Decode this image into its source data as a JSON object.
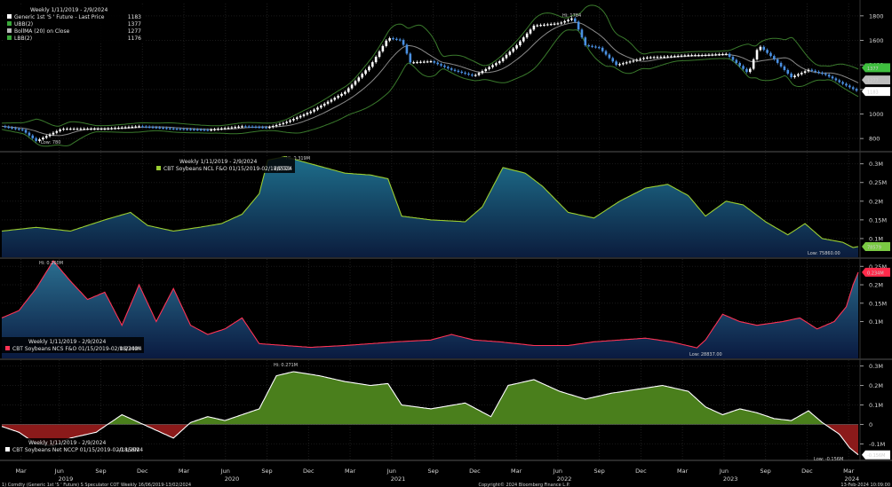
{
  "colors": {
    "background": "#000000",
    "price_up": "#ffffff",
    "price_down": "#4a90e2",
    "bollinger": "#8a8a8a",
    "band": "#3a7a2c",
    "panel2_line": "#9acd32",
    "panel3_line": "#ff3355",
    "panel4_line": "#ffffff",
    "panel4_pos": "#4a7f1c",
    "panel4_neg": "#8b1a1a"
  },
  "footer": {
    "left": "1) Comdty (Generic 1st 'S ' Future) S Speculator COT  Weekly 16/06/2019-13/02/2024",
    "center": "Copyright© 2024 Bloomberg Finance L.P.",
    "right": "13-Feb-2024 10:09:00"
  },
  "chart_data": [
    {
      "type": "candlestick",
      "legend_title": "Weekly 1/11/2019 - 2/9/2024",
      "legend": [
        {
          "name": "Generic 1st 'S ' Future - Last Price",
          "value": "1183"
        },
        {
          "name": "UBB(2)",
          "value": "1377"
        },
        {
          "name": "BollMA (20)  on Close",
          "value": "1277"
        },
        {
          "name": "LBB(2)",
          "value": "1176"
        }
      ],
      "ylim": [
        700,
        1900
      ],
      "yticks": [
        "800",
        "1000",
        "1200",
        "1400",
        "1600",
        "1800"
      ],
      "tags": [
        {
          "label": "1377",
          "value": 1377,
          "color": "#3fbf3f"
        },
        {
          "label": "1277",
          "value": 1277,
          "color": "#bdbdbd"
        },
        {
          "label": "1183",
          "value": 1183,
          "color": "#ffffff"
        }
      ],
      "annotations": {
        "high": "Hi: 1784",
        "low": "Low: 780"
      },
      "keypoints": [
        [
          0,
          900
        ],
        [
          12,
          870
        ],
        [
          20,
          780
        ],
        [
          35,
          880
        ],
        [
          60,
          880
        ],
        [
          80,
          900
        ],
        [
          100,
          880
        ],
        [
          120,
          870
        ],
        [
          140,
          900
        ],
        [
          155,
          890
        ],
        [
          165,
          930
        ],
        [
          180,
          1020
        ],
        [
          200,
          1180
        ],
        [
          215,
          1400
        ],
        [
          225,
          1620
        ],
        [
          233,
          1600
        ],
        [
          238,
          1420
        ],
        [
          250,
          1430
        ],
        [
          262,
          1360
        ],
        [
          275,
          1310
        ],
        [
          290,
          1430
        ],
        [
          300,
          1560
        ],
        [
          310,
          1720
        ],
        [
          325,
          1740
        ],
        [
          333,
          1784
        ],
        [
          340,
          1560
        ],
        [
          348,
          1540
        ],
        [
          358,
          1400
        ],
        [
          375,
          1460
        ],
        [
          390,
          1470
        ],
        [
          400,
          1480
        ],
        [
          408,
          1480
        ],
        [
          422,
          1490
        ],
        [
          435,
          1330
        ],
        [
          441,
          1560
        ],
        [
          449,
          1460
        ],
        [
          460,
          1300
        ],
        [
          470,
          1360
        ],
        [
          480,
          1320
        ],
        [
          488,
          1260
        ],
        [
          499,
          1183
        ]
      ]
    },
    {
      "type": "area",
      "legend_title": "Weekly 1/11/2019 - 2/9/2024",
      "legend": [
        {
          "name": "CBT Soybeans NCL F&O 01/15/2019-02/18/2024",
          "value": "78579"
        }
      ],
      "ylim": [
        50000,
        330000
      ],
      "yticks": [
        "0.1M",
        "0.15M",
        "0.2M",
        "0.25M",
        "0.3M"
      ],
      "tags": [
        {
          "label": "78579",
          "value": 78579,
          "color": "#7ac943"
        }
      ],
      "annotations": {
        "high": "Hi: 0.319M",
        "low": "Low: 75860.00"
      },
      "keypoints": [
        [
          0,
          120000
        ],
        [
          20,
          130000
        ],
        [
          40,
          120000
        ],
        [
          60,
          150000
        ],
        [
          75,
          170000
        ],
        [
          85,
          135000
        ],
        [
          100,
          120000
        ],
        [
          115,
          130000
        ],
        [
          128,
          140000
        ],
        [
          140,
          165000
        ],
        [
          150,
          220000
        ],
        [
          155,
          310000
        ],
        [
          165,
          319000
        ],
        [
          180,
          300000
        ],
        [
          200,
          275000
        ],
        [
          215,
          270000
        ],
        [
          225,
          260000
        ],
        [
          233,
          160000
        ],
        [
          250,
          150000
        ],
        [
          270,
          145000
        ],
        [
          280,
          185000
        ],
        [
          292,
          290000
        ],
        [
          305,
          275000
        ],
        [
          315,
          240000
        ],
        [
          330,
          170000
        ],
        [
          345,
          155000
        ],
        [
          360,
          200000
        ],
        [
          375,
          235000
        ],
        [
          388,
          245000
        ],
        [
          400,
          215000
        ],
        [
          410,
          160000
        ],
        [
          422,
          200000
        ],
        [
          432,
          190000
        ],
        [
          445,
          145000
        ],
        [
          458,
          110000
        ],
        [
          468,
          140000
        ],
        [
          478,
          100000
        ],
        [
          490,
          90000
        ],
        [
          496,
          76000
        ],
        [
          499,
          78579
        ]
      ]
    },
    {
      "type": "area",
      "legend_title": "Weekly 1/11/2019 - 2/9/2024",
      "legend": [
        {
          "name": "CBT Soybeans NCS F&O 01/15/2019-02/18/2024",
          "value": "0.234M"
        }
      ],
      "ylim": [
        0,
        0.27
      ],
      "yticks": [
        "50000",
        "0.1M",
        "0.15M",
        "0.2M",
        "0.25M"
      ],
      "tags": [
        {
          "label": "0.234M",
          "value": 0.234,
          "color": "#ff2a4a"
        }
      ],
      "annotations": {
        "high": "Hi: 0.260M",
        "low": "Low: 28837.00"
      },
      "keypoints": [
        [
          0,
          0.11
        ],
        [
          10,
          0.13
        ],
        [
          20,
          0.19
        ],
        [
          30,
          0.265
        ],
        [
          40,
          0.21
        ],
        [
          50,
          0.16
        ],
        [
          60,
          0.18
        ],
        [
          70,
          0.09
        ],
        [
          80,
          0.2
        ],
        [
          90,
          0.1
        ],
        [
          100,
          0.19
        ],
        [
          110,
          0.09
        ],
        [
          120,
          0.065
        ],
        [
          130,
          0.08
        ],
        [
          140,
          0.11
        ],
        [
          150,
          0.04
        ],
        [
          165,
          0.035
        ],
        [
          180,
          0.03
        ],
        [
          200,
          0.035
        ],
        [
          215,
          0.04
        ],
        [
          230,
          0.045
        ],
        [
          250,
          0.05
        ],
        [
          262,
          0.065
        ],
        [
          275,
          0.05
        ],
        [
          290,
          0.045
        ],
        [
          310,
          0.035
        ],
        [
          330,
          0.035
        ],
        [
          345,
          0.045
        ],
        [
          360,
          0.05
        ],
        [
          375,
          0.055
        ],
        [
          390,
          0.045
        ],
        [
          405,
          0.0288
        ],
        [
          410,
          0.05
        ],
        [
          420,
          0.12
        ],
        [
          430,
          0.1
        ],
        [
          440,
          0.09
        ],
        [
          455,
          0.1
        ],
        [
          465,
          0.11
        ],
        [
          475,
          0.08
        ],
        [
          485,
          0.1
        ],
        [
          492,
          0.14
        ],
        [
          496,
          0.2
        ],
        [
          499,
          0.234
        ]
      ]
    },
    {
      "type": "area",
      "legend_title": "Weekly 1/11/2019 - 2/9/2024",
      "legend": [
        {
          "name": "CBT Soybeans Net NCCP 01/15/2019-02/18/2024",
          "value": "-0.156M"
        }
      ],
      "ylim": [
        -0.18,
        0.33
      ],
      "yticks": [
        "-0.1M",
        "0",
        "0.1M",
        "0.2M",
        "0.3M"
      ],
      "tags": [
        {
          "label": "-0.156M",
          "value": -0.156,
          "color": "#ffffff"
        }
      ],
      "annotations": {
        "high": "Hi: 0.271M",
        "low": "Low: -0.156M"
      },
      "keypoints": [
        [
          0,
          -0.01
        ],
        [
          10,
          -0.04
        ],
        [
          20,
          -0.1
        ],
        [
          30,
          -0.11
        ],
        [
          40,
          -0.07
        ],
        [
          55,
          -0.04
        ],
        [
          70,
          0.05
        ],
        [
          80,
          0.01
        ],
        [
          90,
          -0.03
        ],
        [
          100,
          -0.07
        ],
        [
          110,
          0.01
        ],
        [
          120,
          0.04
        ],
        [
          130,
          0.02
        ],
        [
          140,
          0.05
        ],
        [
          150,
          0.08
        ],
        [
          160,
          0.25
        ],
        [
          170,
          0.271
        ],
        [
          185,
          0.25
        ],
        [
          200,
          0.22
        ],
        [
          215,
          0.2
        ],
        [
          225,
          0.21
        ],
        [
          233,
          0.1
        ],
        [
          250,
          0.08
        ],
        [
          270,
          0.11
        ],
        [
          285,
          0.04
        ],
        [
          295,
          0.2
        ],
        [
          310,
          0.23
        ],
        [
          325,
          0.17
        ],
        [
          340,
          0.13
        ],
        [
          355,
          0.16
        ],
        [
          370,
          0.18
        ],
        [
          385,
          0.2
        ],
        [
          400,
          0.17
        ],
        [
          410,
          0.09
        ],
        [
          420,
          0.05
        ],
        [
          430,
          0.08
        ],
        [
          440,
          0.06
        ],
        [
          450,
          0.03
        ],
        [
          460,
          0.02
        ],
        [
          470,
          0.07
        ],
        [
          478,
          0.01
        ],
        [
          488,
          -0.05
        ],
        [
          494,
          -0.12
        ],
        [
          499,
          -0.156
        ]
      ]
    }
  ],
  "xaxis": {
    "ticks": [
      {
        "label": "Mar",
        "t": 6
      },
      {
        "label": "Jun",
        "t": 18
      },
      {
        "label": "Sep",
        "t": 31
      },
      {
        "label": "Dec",
        "t": 44
      },
      {
        "label": "Mar",
        "t": 57
      },
      {
        "label": "Jun",
        "t": 70
      },
      {
        "label": "Sep",
        "t": 83
      },
      {
        "label": "Dec",
        "t": 96
      },
      {
        "label": "Mar",
        "t": 109
      },
      {
        "label": "Jun",
        "t": 122
      },
      {
        "label": "Sep",
        "t": 135
      },
      {
        "label": "Dec",
        "t": 148
      },
      {
        "label": "Mar",
        "t": 161
      },
      {
        "label": "Jun",
        "t": 174
      },
      {
        "label": "Sep",
        "t": 187
      },
      {
        "label": "Dec",
        "t": 200
      },
      {
        "label": "Mar",
        "t": 213
      },
      {
        "label": "Jun",
        "t": 226
      },
      {
        "label": "Sep",
        "t": 239
      },
      {
        "label": "Dec",
        "t": 252
      },
      {
        "label": "Mar",
        "t": 265
      }
    ],
    "years": [
      {
        "label": "2019",
        "t": 20
      },
      {
        "label": "2020",
        "t": 72
      },
      {
        "label": "2021",
        "t": 124
      },
      {
        "label": "2022",
        "t": 176
      },
      {
        "label": "2023",
        "t": 228
      },
      {
        "label": "2024",
        "t": 266
      }
    ]
  }
}
